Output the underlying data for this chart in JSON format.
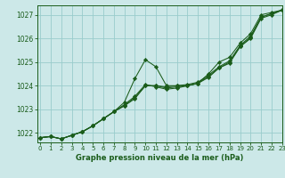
{
  "xlabel": "Graphe pression niveau de la mer (hPa)",
  "ylim": [
    1021.6,
    1027.4
  ],
  "xlim": [
    -0.3,
    23
  ],
  "yticks": [
    1022,
    1023,
    1024,
    1025,
    1026,
    1027
  ],
  "xticks": [
    0,
    1,
    2,
    3,
    4,
    5,
    6,
    7,
    8,
    9,
    10,
    11,
    12,
    13,
    14,
    15,
    16,
    17,
    18,
    19,
    20,
    21,
    22,
    23
  ],
  "bg_color": "#cce8e8",
  "grid_color": "#99cccc",
  "line_color": "#1a5c1a",
  "marker_color": "#1a5c1a",
  "series": [
    [
      1021.8,
      1021.85,
      1021.75,
      1021.9,
      1022.05,
      1022.3,
      1022.6,
      1022.9,
      1023.3,
      1024.3,
      1025.1,
      1024.8,
      1024.0,
      1024.0,
      1024.0,
      1024.1,
      1024.5,
      1025.0,
      1025.2,
      1025.8,
      1026.2,
      1027.0,
      1027.1,
      1027.2
    ],
    [
      1021.8,
      1021.85,
      1021.75,
      1021.9,
      1022.05,
      1022.3,
      1022.6,
      1022.9,
      1023.15,
      1023.5,
      1024.0,
      1024.0,
      1023.95,
      1024.0,
      1024.05,
      1024.15,
      1024.45,
      1024.8,
      1025.05,
      1025.7,
      1026.1,
      1026.9,
      1027.05,
      1027.2
    ],
    [
      1021.8,
      1021.85,
      1021.75,
      1021.9,
      1022.05,
      1022.3,
      1022.6,
      1022.9,
      1023.15,
      1023.45,
      1024.0,
      1024.0,
      1023.9,
      1023.95,
      1024.0,
      1024.1,
      1024.4,
      1024.75,
      1025.0,
      1025.65,
      1026.05,
      1026.9,
      1027.05,
      1027.2
    ],
    [
      1021.8,
      1021.85,
      1021.75,
      1021.9,
      1022.05,
      1022.3,
      1022.6,
      1022.9,
      1023.2,
      1023.55,
      1024.05,
      1023.95,
      1023.85,
      1023.9,
      1024.0,
      1024.1,
      1024.35,
      1024.75,
      1024.95,
      1025.65,
      1026.0,
      1026.85,
      1027.0,
      1027.2
    ]
  ]
}
